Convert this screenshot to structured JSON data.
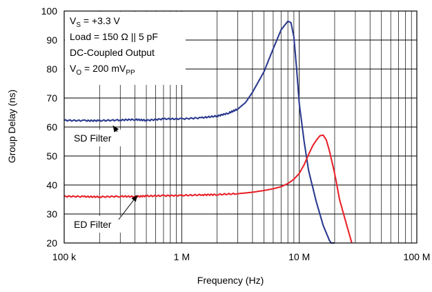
{
  "chart_data": {
    "type": "line",
    "title": "",
    "xlabel": "Frequency (Hz)",
    "ylabel": "Group Delay (ns)",
    "xscale": "log",
    "xlim": [
      100000,
      100000000
    ],
    "ylim": [
      20,
      100
    ],
    "grid": true,
    "x_tick_values": [
      100000,
      1000000,
      10000000,
      100000000
    ],
    "x_tick_labels": [
      "100 k",
      "1 M",
      "10 M",
      "100 M"
    ],
    "y_tick_values": [
      20,
      30,
      40,
      50,
      60,
      70,
      80,
      90,
      100
    ],
    "y_tick_labels": [
      "20",
      "30",
      "40",
      "50",
      "60",
      "70",
      "80",
      "90",
      "100"
    ],
    "conditions": [
      {
        "main": "V",
        "sub": "S",
        "rest": " = +3.3 V"
      },
      {
        "main": "Load = 150 Ω || 5 pF",
        "sub": "",
        "rest": ""
      },
      {
        "main": "DC-Coupled Output",
        "sub": "",
        "rest": ""
      },
      {
        "main": "V",
        "sub": "O",
        "rest": " = 200 mV",
        "sub2": "PP"
      }
    ],
    "series": [
      {
        "name": "SD Filter",
        "color": "#2b3a8f",
        "x": [
          100000,
          150000,
          200000,
          300000,
          400000,
          500000,
          700000,
          1000000,
          1500000,
          2000000,
          2500000,
          3000000,
          3500000,
          4000000,
          5000000,
          6000000,
          7000000,
          8000000,
          8500000,
          9000000,
          9500000,
          10000000,
          11000000,
          12000000,
          14000000,
          16000000,
          18000000,
          20000000
        ],
        "values": [
          62.3,
          62.2,
          62.2,
          62.4,
          62.6,
          62.3,
          62.8,
          62.8,
          63.2,
          63.8,
          64.8,
          66.2,
          68.5,
          72,
          79,
          87,
          93.5,
          96.5,
          96,
          91,
          80,
          68,
          55,
          45,
          34,
          26,
          21,
          18
        ]
      },
      {
        "name": "ED Filter",
        "color": "#e8232a",
        "x": [
          100000,
          150000,
          200000,
          300000,
          400000,
          500000,
          700000,
          1000000,
          1500000,
          2000000,
          3000000,
          4000000,
          5000000,
          6000000,
          7000000,
          8000000,
          9000000,
          10000000,
          11000000,
          12000000,
          13000000,
          14000000,
          15000000,
          16000000,
          17000000,
          18000000,
          20000000,
          22000000,
          25000000,
          28000000
        ],
        "values": [
          36.1,
          36,
          35.9,
          36.1,
          36,
          36.2,
          36.3,
          36.4,
          36.6,
          36.7,
          37,
          37.5,
          38.1,
          38.7,
          39.4,
          40.5,
          42,
          44,
          47,
          50.5,
          53.5,
          55.5,
          57,
          57.2,
          55.5,
          52,
          44,
          35,
          27,
          20
        ]
      }
    ],
    "annotations": [
      {
        "text": "SD Filter",
        "x": 300000,
        "y": 53,
        "arrow_to_x": 260000,
        "arrow_to_y": 60.5
      },
      {
        "text": "ED Filter",
        "x": 300000,
        "y": 28,
        "arrow_to_x": 420000,
        "arrow_to_y": 36.5
      }
    ]
  }
}
